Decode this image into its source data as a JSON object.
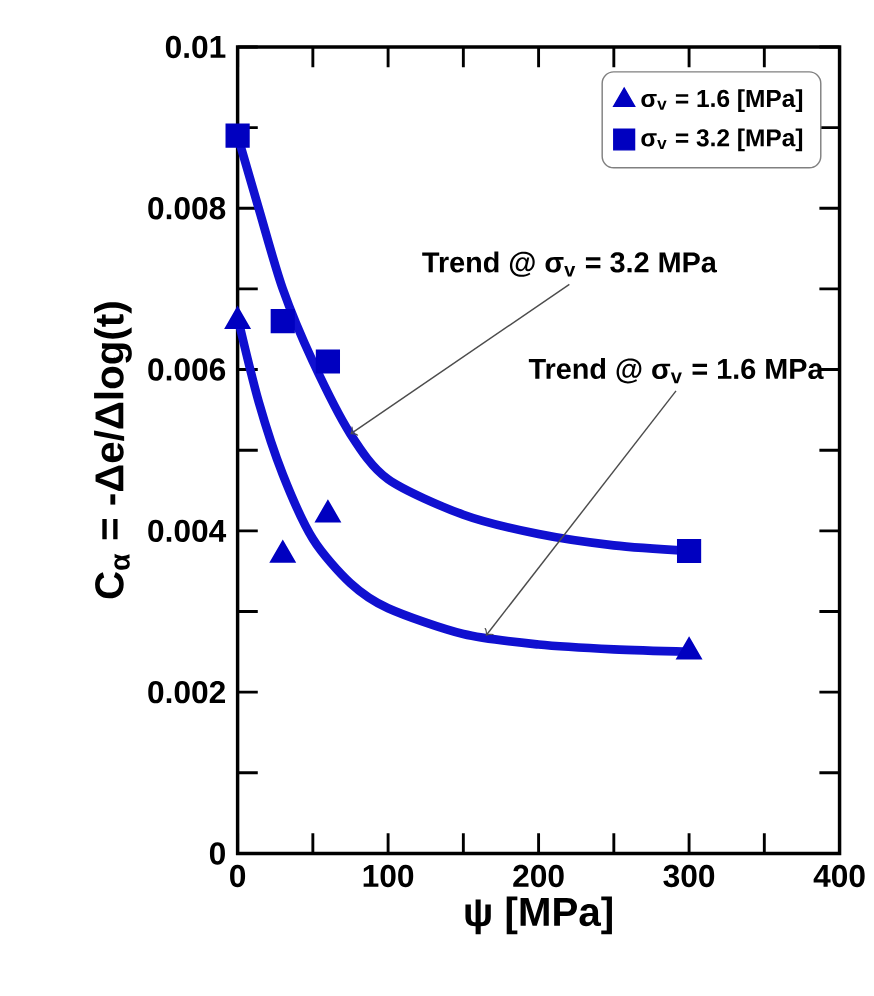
{
  "chart_data": {
    "type": "scatter",
    "xlabel": "ψ [MPa]",
    "ylabel": "C$_{α}$ = -Δe/Δlog(t)",
    "xlim": [
      0,
      400
    ],
    "xticks": [
      0,
      {
        "value": 50,
        "label": null
      },
      100,
      {
        "value": 150,
        "label": null
      },
      200,
      {
        "value": 250,
        "label": null
      },
      300,
      {
        "value": 350,
        "label": null
      },
      400
    ],
    "ylim": [
      0,
      0.01
    ],
    "yticks": [
      0,
      {
        "value": 0.001,
        "label": null
      },
      0.002,
      {
        "value": 0.003,
        "label": null
      },
      0.004,
      {
        "value": 0.005,
        "label": null
      },
      0.006,
      {
        "value": 0.007,
        "label": null
      },
      0.008,
      {
        "value": 0.009,
        "label": null
      },
      0.01
    ],
    "grid": false,
    "legend": "top right",
    "series": [
      {
        "name": "σ$_{v}$ = 1.6 [MPa]",
        "color": "#0000c0",
        "marker": "triangle",
        "x": [
          0,
          30,
          60,
          300
        ],
        "values": [
          0.0066,
          0.0037,
          0.0042,
          0.0025
        ]
      },
      {
        "name": "σ$_{v}$ = 3.2 [MPa]",
        "color": "#0000c0",
        "marker": "square",
        "x": [
          0,
          30,
          60,
          300
        ],
        "values": [
          0.0089,
          0.0066,
          0.0061,
          0.00375
        ]
      },
      {
        "type": "line",
        "color": "#1010d0",
        "marker": "none",
        "x": [
          0,
          14,
          30,
          50,
          75,
          100,
          150,
          200,
          250,
          300
        ],
        "values": [
          0.0089,
          0.008,
          0.007,
          0.0061,
          0.0052,
          0.00464,
          0.0042,
          0.00396,
          0.00382,
          0.00375
        ]
      },
      {
        "type": "line",
        "color": "#1010d0",
        "marker": "none",
        "x": [
          0,
          14,
          30,
          50,
          75,
          100,
          150,
          200,
          250,
          300
        ],
        "values": [
          0.00665,
          0.0056,
          0.0047,
          0.0039,
          0.00335,
          0.00304,
          0.00272,
          0.00259,
          0.00253,
          0.0025
        ]
      }
    ],
    "annotations": [
      {
        "text": "Trend @ σ$_{v}$ = 3.2 MPa",
        "x": 75,
        "y": 0.0052
      },
      {
        "text": "Trend @ σ$_{v}$ = 1.6 MPa",
        "x": 165,
        "y": 0.0027
      }
    ]
  }
}
